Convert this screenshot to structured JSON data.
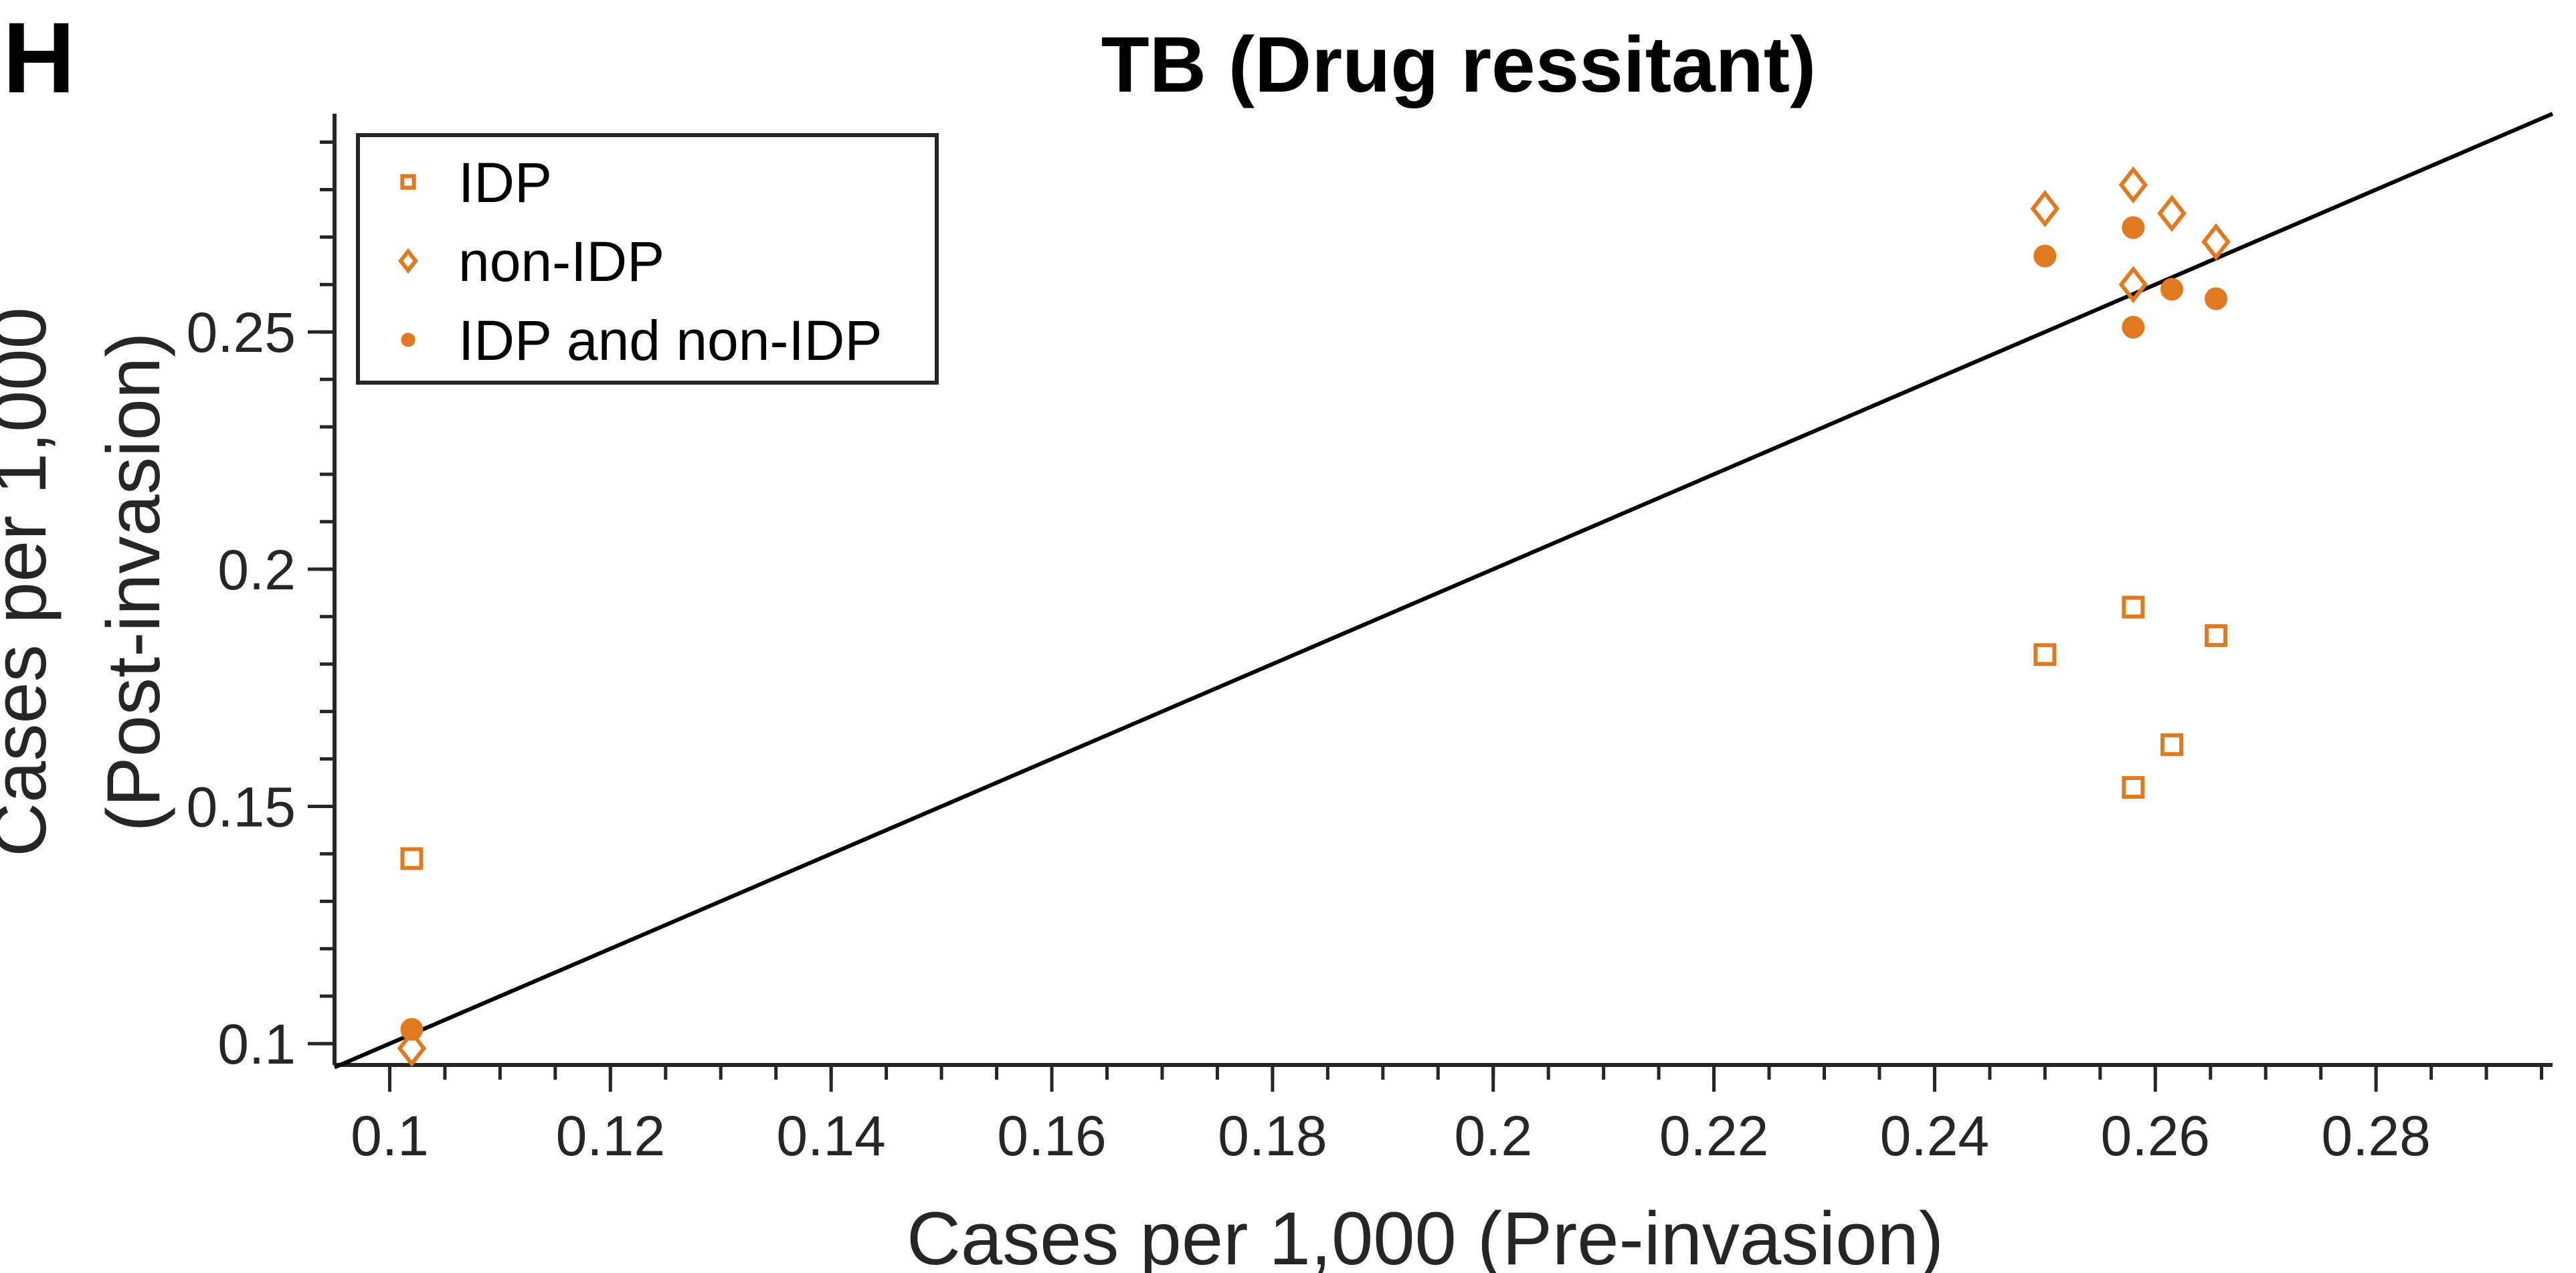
{
  "panel_letter": "H",
  "chart_data": {
    "type": "scatter",
    "title": "TB (Drug ressitant)",
    "xlabel": "Cases per 1,000 (Pre-invasion)",
    "ylabel_line1": "Cases per 1,000",
    "ylabel_line2": "(Post-invasion)",
    "xlim": [
      0.095,
      0.296
    ],
    "ylim": [
      0.0955,
      0.296
    ],
    "x_ticks": [
      0.1,
      0.12,
      0.14,
      0.16,
      0.18,
      0.2,
      0.22,
      0.24,
      0.26,
      0.28
    ],
    "x_tick_labels": [
      "0.1",
      "0.12",
      "0.14",
      "0.16",
      "0.18",
      "0.2",
      "0.22",
      "0.24",
      "0.26",
      "0.28"
    ],
    "y_ticks": [
      0.1,
      0.15,
      0.2,
      0.25
    ],
    "y_tick_labels": [
      "0.1",
      "0.15",
      "0.2",
      "0.25"
    ],
    "grid": false,
    "legend_position": "top-left",
    "reference_line": {
      "type": "identity",
      "from": 0.095,
      "to": 0.296
    },
    "color": "#E07A20",
    "series": [
      {
        "name": "IDP",
        "marker": "square-open",
        "x": [
          0.102,
          0.25,
          0.258,
          0.258,
          0.2615,
          0.2655
        ],
        "y": [
          0.139,
          0.182,
          0.192,
          0.154,
          0.163,
          0.186
        ]
      },
      {
        "name": "non-IDP",
        "marker": "diamond-open",
        "x": [
          0.102,
          0.25,
          0.258,
          0.258,
          0.2615,
          0.2655
        ],
        "y": [
          0.099,
          0.276,
          0.281,
          0.26,
          0.275,
          0.269
        ]
      },
      {
        "name": "IDP and non-IDP",
        "marker": "circle-filled",
        "x": [
          0.102,
          0.25,
          0.258,
          0.258,
          0.2615,
          0.2655
        ],
        "y": [
          0.103,
          0.266,
          0.272,
          0.251,
          0.259,
          0.257
        ]
      }
    ]
  }
}
